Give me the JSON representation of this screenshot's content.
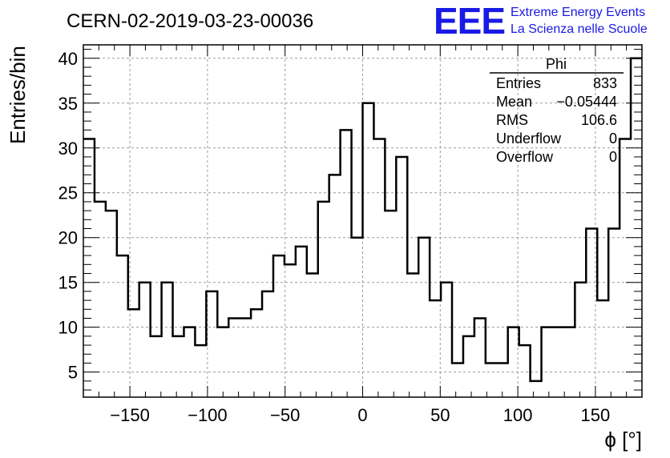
{
  "header": {
    "title": "CERN-02-2019-03-23-00036",
    "logo_text": "EEE",
    "logo_line1": "Extreme Energy Events",
    "logo_line2": "La Scienza nelle Scuole"
  },
  "stats_box": {
    "name": "Phi",
    "rows": [
      {
        "label": "Entries",
        "value": "833"
      },
      {
        "label": "Mean",
        "value": "−0.05444"
      },
      {
        "label": "RMS",
        "value": "106.6"
      },
      {
        "label": "Underflow",
        "value": "0"
      },
      {
        "label": "Overflow",
        "value": "0"
      }
    ]
  },
  "chart_data": {
    "type": "histogram",
    "xlabel": "ϕ [°]",
    "ylabel": "Entries/bin",
    "xlim": [
      -180,
      180
    ],
    "ylim": [
      2.2,
      41.5
    ],
    "bin_edges_start": -180,
    "bin_width": 7.2,
    "x_ticks": [
      -150,
      -100,
      -50,
      0,
      50,
      100,
      150
    ],
    "x_tick_labels": [
      "−150",
      "−100",
      "−50",
      "0",
      "50",
      "100",
      "150"
    ],
    "y_ticks": [
      5,
      10,
      15,
      20,
      25,
      30,
      35,
      40
    ],
    "y_tick_labels": [
      "5",
      "10",
      "15",
      "20",
      "25",
      "30",
      "35",
      "40"
    ],
    "grid": true,
    "values": [
      31,
      24,
      23,
      18,
      12,
      15,
      9,
      15,
      9,
      10,
      8,
      14,
      10,
      11,
      11,
      12,
      14,
      18,
      17,
      19,
      16,
      24,
      27,
      32,
      20,
      35,
      31,
      23,
      29,
      16,
      20,
      13,
      15,
      6,
      9,
      11,
      6,
      6,
      10,
      8,
      4,
      10,
      10,
      10,
      15,
      21,
      13,
      21,
      31,
      40
    ]
  }
}
